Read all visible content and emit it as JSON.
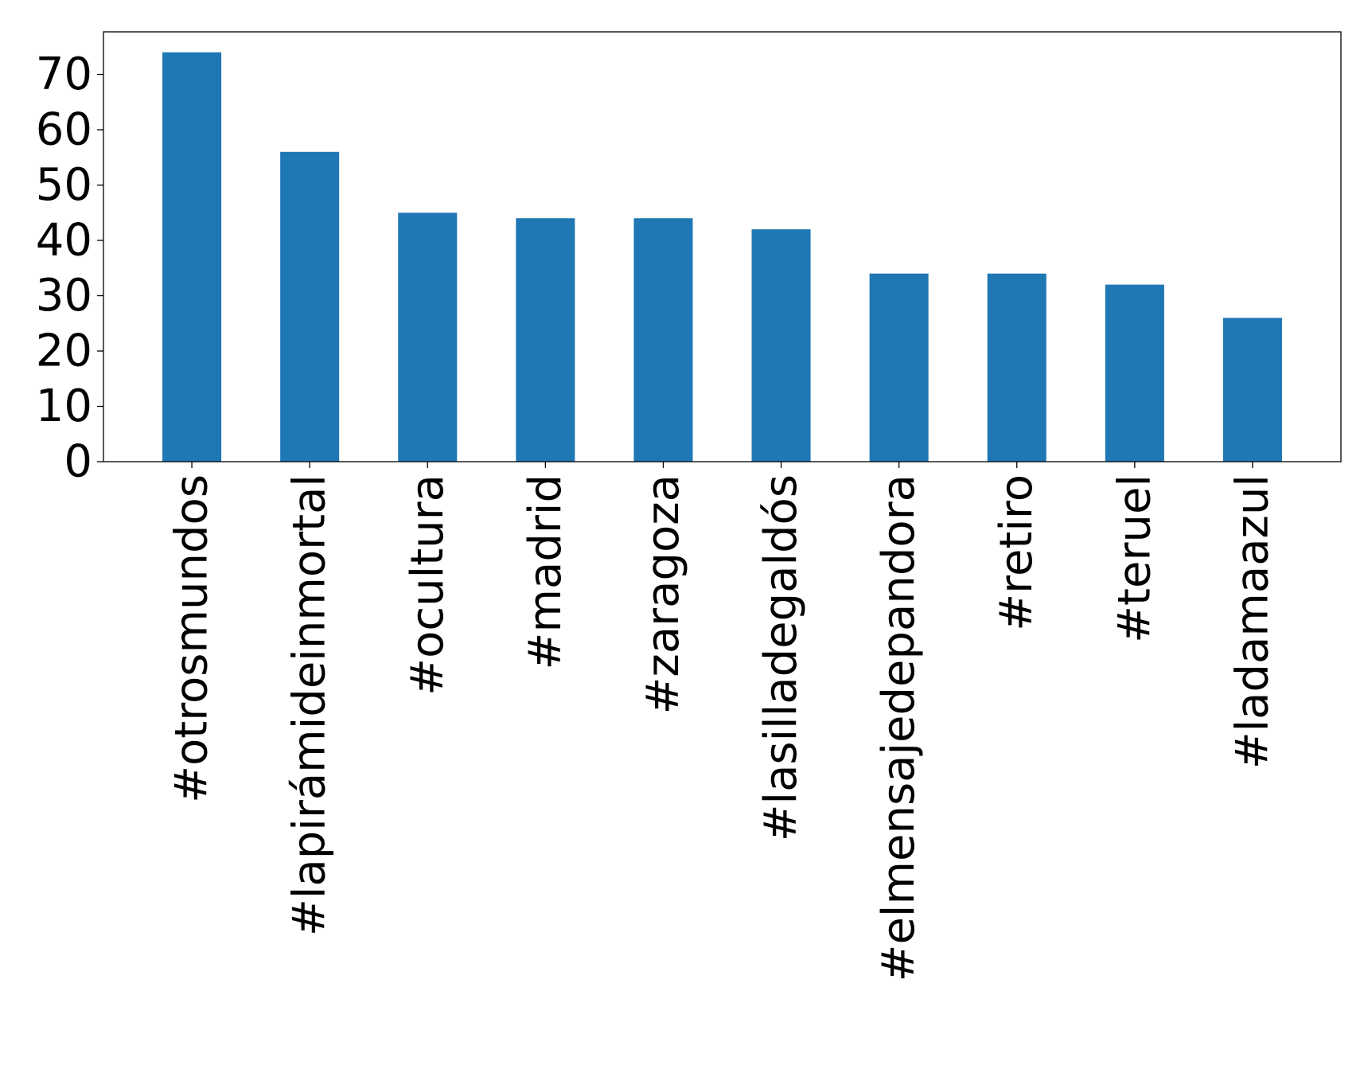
{
  "chart_data": {
    "type": "bar",
    "title": "",
    "xlabel": "",
    "ylabel": "",
    "categories": [
      "#otrosmundos",
      "#lapirámideinmortal",
      "#ocultura",
      "#madrid",
      "#zaragoza",
      "#lasilladegaldós",
      "#elmensajedepandora",
      "#retiro",
      "#teruel",
      "#ladamaazul"
    ],
    "values": [
      74,
      56,
      45,
      44,
      44,
      42,
      34,
      34,
      32,
      26
    ],
    "ylim": [
      0,
      77.7
    ],
    "yticks": [
      0,
      10,
      20,
      30,
      40,
      50,
      60,
      70
    ],
    "grid": false,
    "legend": "none",
    "bar_color": "#1f77b4"
  }
}
